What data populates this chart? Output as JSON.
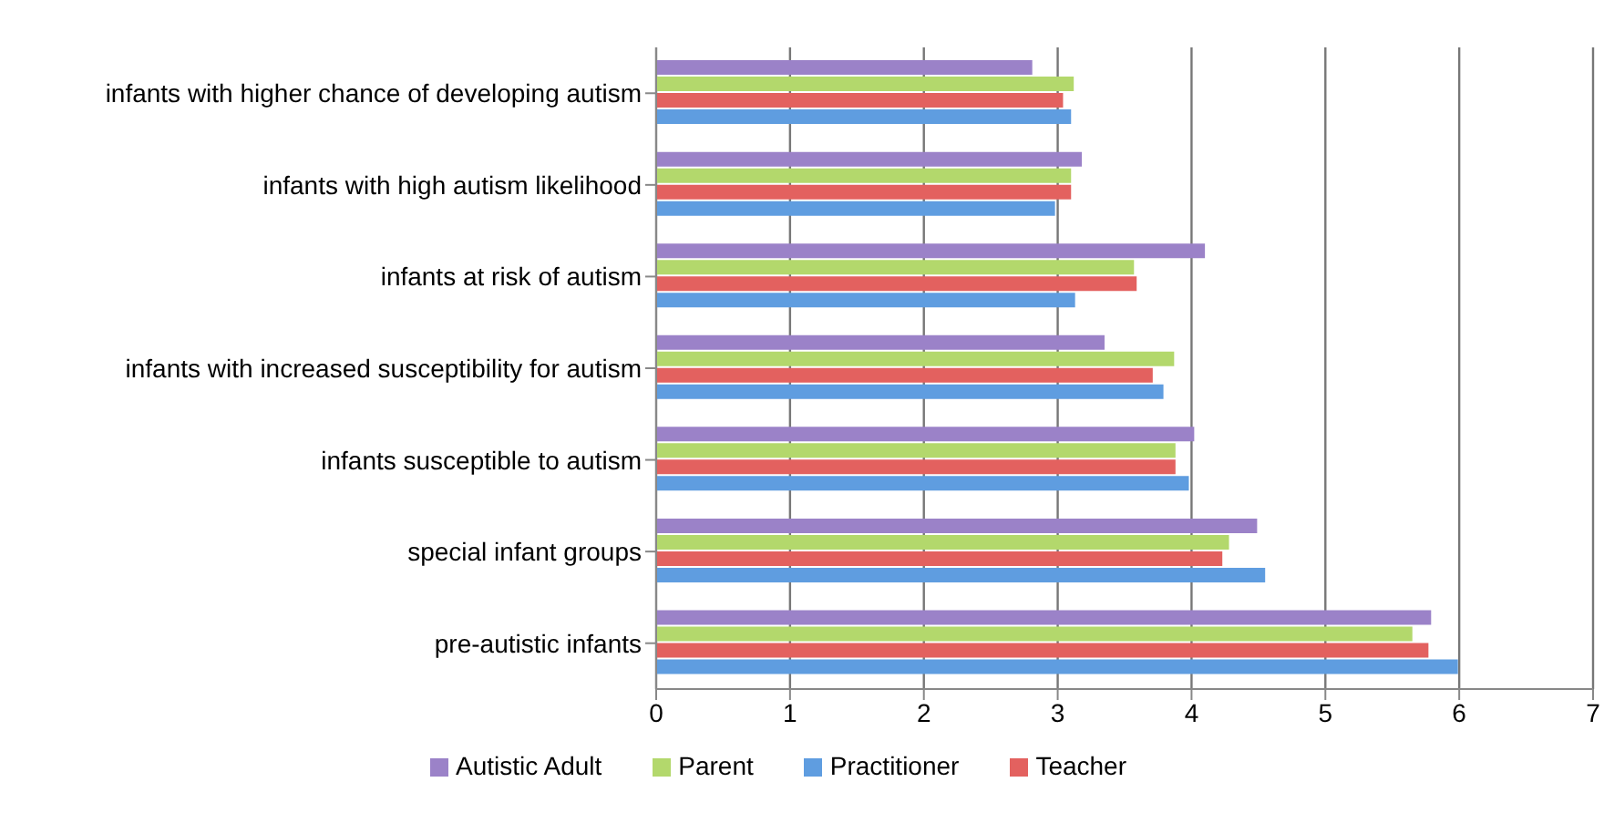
{
  "chart_data": {
    "type": "bar",
    "orientation": "horizontal",
    "categories": [
      "infants with higher chance of developing autism",
      "infants with high autism likelihood",
      "infants at risk of autism",
      "infants with increased susceptibility for autism",
      "infants susceptible to autism",
      "special infant groups",
      "pre-autistic infants"
    ],
    "series": [
      {
        "name": "Autistic Adult",
        "color": "#9b82c8",
        "values": [
          2.81,
          3.18,
          4.1,
          3.35,
          4.02,
          4.49,
          5.79
        ]
      },
      {
        "name": "Parent",
        "color": "#b3d86c",
        "values": [
          3.12,
          3.1,
          3.57,
          3.87,
          3.88,
          4.28,
          5.65
        ]
      },
      {
        "name": "Teacher",
        "color": "#e3615f",
        "values": [
          3.04,
          3.1,
          3.59,
          3.71,
          3.88,
          4.23,
          5.77
        ]
      },
      {
        "name": "Practitioner",
        "color": "#5f9de0",
        "values": [
          3.1,
          2.98,
          3.13,
          3.79,
          3.98,
          4.55,
          5.99
        ]
      }
    ],
    "xlim": [
      0,
      7
    ],
    "xticks": [
      0,
      1,
      2,
      3,
      4,
      5,
      6,
      7
    ],
    "grid": "x",
    "legend": "bottom"
  }
}
